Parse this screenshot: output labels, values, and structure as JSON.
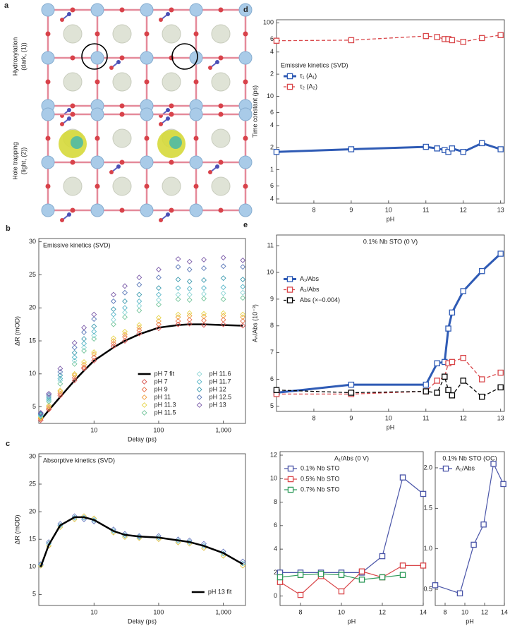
{
  "panel_a": {
    "letter": "a",
    "top_label": [
      "Hydroxylation",
      "(dark, (1))"
    ],
    "bottom_label": [
      "Hole trapping",
      "(light, (2))"
    ]
  },
  "chart_data": [
    {
      "type": "scatter",
      "panel": "b",
      "title": "Emissive kinetics (SVD)",
      "title_pos": "top-left",
      "xlabel": "Delay (ps)",
      "ylabel": "ΔR (mOD)",
      "xlog": true,
      "x": [
        1.5,
        2,
        3,
        5,
        7,
        10,
        20,
        30,
        50,
        100,
        200,
        300,
        500,
        1000,
        2000
      ],
      "xlim": [
        1.4,
        2200
      ],
      "xticks": [
        10,
        100,
        {
          "value": 1000,
          "label": "1,000"
        }
      ],
      "ylim": [
        2.5,
        30.5
      ],
      "yticks": [
        5,
        10,
        15,
        20,
        25,
        30
      ],
      "legend": "lower-right",
      "legend_columns": 2,
      "series": [
        {
          "name": "pH 7 fit",
          "color": "#000000",
          "line": true,
          "line_width": 2.5,
          "marker": "none",
          "values": [
            3,
            4.5,
            6.5,
            9,
            10.5,
            12,
            14,
            15,
            16,
            17,
            17.4,
            17.5,
            17.5,
            17.4,
            17.3
          ]
        },
        {
          "name": "pH 7",
          "color": "#d9534f",
          "marker": "diamond",
          "values": [
            3,
            4.6,
            6.7,
            9,
            10.8,
            12,
            14.2,
            15,
            16.1,
            16.9,
            17.5,
            17.6,
            17.4,
            17.5,
            17.3
          ]
        },
        {
          "name": "pH 9",
          "color": "#e8704a",
          "marker": "diamond",
          "values": [
            3.2,
            4.8,
            7,
            9.4,
            11,
            12.5,
            14.6,
            15.6,
            16.6,
            17.5,
            18,
            18.2,
            18.1,
            18.2,
            18
          ]
        },
        {
          "name": "pH 11",
          "color": "#f0a040",
          "marker": "diamond",
          "values": [
            3.3,
            5,
            7.3,
            9.8,
            11.4,
            13,
            15,
            16,
            17,
            18,
            18.6,
            18.8,
            18.7,
            18.8,
            18.6
          ]
        },
        {
          "name": "pH 11.3",
          "color": "#e6d44a",
          "marker": "diamond",
          "values": [
            3.4,
            5.2,
            7.5,
            10,
            11.8,
            13.3,
            15.4,
            16.4,
            17.4,
            18.5,
            19,
            19.2,
            19.1,
            19.2,
            19
          ]
        },
        {
          "name": "pH 11.5",
          "color": "#72c49a",
          "marker": "diamond",
          "values": [
            3.6,
            5.8,
            8.5,
            11.5,
            13.5,
            15.3,
            17.5,
            18.6,
            19.6,
            20.5,
            21.3,
            21.2,
            21.4,
            21.3,
            21.5
          ]
        },
        {
          "name": "pH 11.6",
          "color": "#8fd6d6",
          "marker": "diamond",
          "values": [
            3.7,
            6,
            9,
            12,
            14,
            15.8,
            18.2,
            19.3,
            20.3,
            21.2,
            22,
            22,
            22.1,
            22.2,
            22.3
          ]
        },
        {
          "name": "pH 11.7",
          "color": "#58b6c8",
          "marker": "diamond",
          "values": [
            3.8,
            6.2,
            9.3,
            12.5,
            14.6,
            16.4,
            19,
            20,
            21,
            22,
            23,
            22.9,
            23,
            23.1,
            23.2
          ]
        },
        {
          "name": "pH 12",
          "color": "#3f9cb0",
          "marker": "diamond",
          "values": [
            3.9,
            6.5,
            9.8,
            13.2,
            15.3,
            17.2,
            19.8,
            21,
            22,
            23,
            24.3,
            24,
            24.2,
            24.5,
            24.3
          ]
        },
        {
          "name": "pH 12.5",
          "color": "#5a78b8",
          "marker": "diamond",
          "values": [
            4,
            6.8,
            10.3,
            14,
            16.3,
            18.3,
            21,
            22.3,
            23.5,
            24.6,
            26.2,
            25.8,
            26,
            26.3,
            26.2
          ]
        },
        {
          "name": "pH 13",
          "color": "#7a5aa8",
          "marker": "diamond",
          "values": [
            4.1,
            7,
            10.8,
            14.7,
            17,
            19,
            22,
            23.3,
            24.6,
            25.8,
            27.4,
            27,
            27.3,
            27.6,
            27.2
          ]
        }
      ]
    },
    {
      "type": "scatter",
      "panel": "c",
      "title": "Absorptive kinetics (SVD)",
      "title_pos": "top-left",
      "xlabel": "Delay (ps)",
      "ylabel": "ΔR (mOD)",
      "xlog": true,
      "x": [
        1.5,
        2,
        3,
        5,
        7,
        10,
        20,
        30,
        50,
        100,
        200,
        300,
        500,
        1000,
        2000
      ],
      "xlim": [
        1.4,
        2200
      ],
      "xticks": [
        10,
        100,
        {
          "value": 1000,
          "label": "1,000"
        }
      ],
      "ylim": [
        3,
        30.5
      ],
      "yticks": [
        5,
        10,
        15,
        20,
        25,
        30
      ],
      "legend": "lower-right",
      "series": [
        {
          "color": "#e0c040",
          "marker": "diamond",
          "values": [
            10.2,
            13.8,
            17.2,
            18.6,
            19.2,
            18.8,
            16.2,
            15.4,
            15.2,
            15,
            14.4,
            14.2,
            13.4,
            12,
            10.2
          ]
        },
        {
          "color": "#58b6c8",
          "marker": "diamond",
          "values": [
            10.4,
            14.2,
            17.5,
            18.9,
            18.9,
            18.5,
            16.5,
            15.7,
            15.4,
            15.3,
            14.7,
            14.5,
            13.8,
            12.4,
            10.6
          ]
        },
        {
          "color": "#6a7ac0",
          "marker": "diamond",
          "values": [
            10.5,
            14.5,
            17.8,
            19.2,
            18.6,
            18.2,
            16.8,
            16,
            15.6,
            15.6,
            15,
            14.8,
            14.2,
            12.8,
            11
          ]
        },
        {
          "name": "pH 13 fit",
          "color": "#000000",
          "line": true,
          "line_width": 2.5,
          "marker": "none",
          "values": [
            10,
            14,
            17.5,
            19,
            19,
            18.5,
            16.5,
            15.8,
            15.5,
            15.3,
            14.8,
            14.5,
            13.8,
            12.5,
            10.5
          ]
        }
      ]
    },
    {
      "type": "line",
      "panel": "d",
      "xlabel": "pH",
      "ylabel": "Time constant (ps)",
      "ylog": true,
      "x": [
        7,
        9,
        11,
        11.3,
        11.5,
        11.6,
        11.7,
        12,
        12.5,
        13
      ],
      "xlim": [
        7,
        13.1
      ],
      "xticks": [
        8,
        9,
        10,
        11,
        12,
        13
      ],
      "ylim": [
        0.35,
        110
      ],
      "yticks": [
        {
          "value": 0.4,
          "label": "4"
        },
        {
          "value": 0.6,
          "label": "6"
        },
        1,
        2,
        4,
        6,
        10,
        {
          "value": 20,
          "label": "2"
        },
        {
          "value": 40,
          "label": "4"
        },
        {
          "value": 60,
          "label": "6"
        },
        100
      ],
      "legend": "center-left",
      "legend_title": "Emissive kinetics (SVD)",
      "series": [
        {
          "name": "τ₁ (A₁)",
          "color": "#2f5bb5",
          "line": true,
          "line_width": 3,
          "marker": "square",
          "values": [
            1.75,
            1.9,
            2.05,
            1.95,
            1.85,
            1.75,
            1.95,
            1.75,
            2.3,
            1.9
          ]
        },
        {
          "name": "τ₂ (A₂)",
          "color": "#d9474a",
          "line": true,
          "line_width": 1.3,
          "dash": "dashed",
          "marker": "square",
          "values": [
            57,
            58,
            66,
            64,
            60,
            60,
            58,
            55,
            62,
            68
          ]
        }
      ]
    },
    {
      "type": "line",
      "panel": "e",
      "title": "0.1% Nb STO (0 V)",
      "title_pos": "top-center",
      "xlabel": "pH",
      "ylabel": "Aₙ/Abs (10⁻³)",
      "x": [
        7,
        9,
        11,
        11.3,
        11.5,
        11.6,
        11.7,
        12,
        12.5,
        13
      ],
      "xlim": [
        7,
        13.1
      ],
      "xticks": [
        8,
        9,
        10,
        11,
        12,
        13
      ],
      "ylim": [
        4.8,
        11.4
      ],
      "yticks": [
        5,
        6,
        7,
        8,
        9,
        10,
        11
      ],
      "legend": "center-left",
      "series": [
        {
          "name": "A₁/Abs",
          "color": "#2f5bb5",
          "line": true,
          "line_width": 3,
          "marker": "square",
          "values": [
            5.5,
            5.8,
            5.8,
            6.6,
            6.65,
            7.9,
            8.5,
            9.3,
            10.05,
            10.7
          ]
        },
        {
          "name": "A₂/Abs",
          "color": "#d9474a",
          "line": true,
          "line_width": 1.3,
          "dash": "dashed",
          "marker": "square",
          "values": [
            5.45,
            5.45,
            5.55,
            5.95,
            6.1,
            6.6,
            6.65,
            6.8,
            6,
            6.25
          ]
        },
        {
          "name": "Abs (×−0.004)",
          "color": "#000000",
          "line": true,
          "line_width": 1.3,
          "dash": "dashed",
          "marker": "square",
          "values": [
            5.6,
            5.5,
            5.55,
            5.5,
            6.1,
            5.6,
            5.4,
            5.95,
            5.35,
            5.7
          ]
        }
      ]
    },
    {
      "type": "line",
      "title": "A₁/Abs (0 V)",
      "title_pos": "top-center",
      "xlabel": "pH",
      "x": [
        7,
        8,
        9,
        10,
        11,
        12,
        13,
        14
      ],
      "xlim": [
        7,
        14
      ],
      "xticks": [
        8,
        10,
        12,
        14
      ],
      "ylim": [
        -0.8,
        12.3
      ],
      "yticks": [
        0,
        2,
        4,
        6,
        8,
        10,
        12
      ],
      "legend": "upper-left",
      "series": [
        {
          "name": "0.1% Nb STO",
          "color": "#4a55a8",
          "line": true,
          "line_width": 1.2,
          "marker": "square",
          "values": [
            2,
            2,
            2,
            2,
            2,
            3.4,
            10.1,
            8.7
          ]
        },
        {
          "name": "0.5% Nb STO",
          "color": "#d9474a",
          "line": true,
          "line_width": 1.2,
          "marker": "square",
          "values": [
            1.2,
            0.1,
            1.7,
            0.4,
            2.1,
            1.6,
            2.6,
            2.6
          ]
        },
        {
          "name": "0.7% Nb STO",
          "color": "#2f9a5a",
          "line": true,
          "line_width": 1.2,
          "marker": "square",
          "values": [
            1.6,
            1.8,
            1.9,
            1.8,
            1.4,
            1.6,
            1.8,
            null
          ]
        }
      ]
    },
    {
      "type": "line",
      "title": "0.1% Nb STO (OC)",
      "title_pos": "top-center",
      "xlabel": "pH",
      "x": [
        7,
        9.5,
        10.9,
        11.9,
        12.9,
        13.9
      ],
      "xlim": [
        7,
        14
      ],
      "xticks": [
        8,
        10,
        12,
        14
      ],
      "ylim": [
        0.3,
        2.2
      ],
      "yticks": [
        0.5,
        {
          "value": 1,
          "label": "1.0"
        },
        1.5,
        {
          "value": 2,
          "label": "2.0"
        }
      ],
      "legend": "upper-left",
      "series": [
        {
          "name": "A₁/Abs",
          "color": "#4a55a8",
          "line": true,
          "line_width": 1.2,
          "marker": "square",
          "values": [
            0.55,
            0.45,
            1.05,
            1.3,
            2.05,
            1.8
          ]
        }
      ]
    }
  ]
}
